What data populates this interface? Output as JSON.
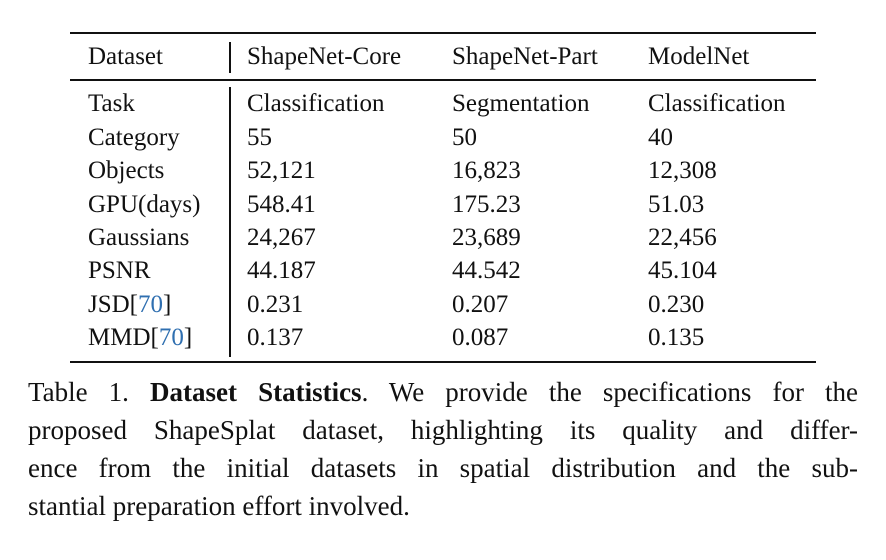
{
  "table": {
    "header": [
      "Dataset",
      "ShapeNet-Core",
      "ShapeNet-Part",
      "ModelNet"
    ],
    "rows": [
      {
        "label": [
          "Task"
        ],
        "cells": [
          "Classification",
          "Segmentation",
          "Classification"
        ]
      },
      {
        "label": [
          "Category"
        ],
        "cells": [
          "55",
          "50",
          "40"
        ]
      },
      {
        "label": [
          "Objects"
        ],
        "cells": [
          "52,121",
          "16,823",
          "12,308"
        ]
      },
      {
        "label": [
          "GPU(days)"
        ],
        "cells": [
          "548.41",
          "175.23",
          "51.03"
        ]
      },
      {
        "label": [
          "Gaussians"
        ],
        "cells": [
          "24,267",
          "23,689",
          "22,456"
        ]
      },
      {
        "label": [
          "PSNR"
        ],
        "cells": [
          "44.187",
          "44.542",
          "45.104"
        ]
      },
      {
        "label": [
          "JSD[",
          "70",
          "]"
        ],
        "cells": [
          "0.231",
          "0.207",
          "0.230"
        ]
      },
      {
        "label": [
          "MMD[",
          "70",
          "]"
        ],
        "cells": [
          "0.137",
          "0.087",
          "0.135"
        ]
      }
    ]
  },
  "caption": {
    "prefix": "Table 1.",
    "title": "Dataset Statistics",
    "lines": [
      ". We provide the specifications for the",
      "proposed ShapeSplat dataset, highlighting its quality and differ-",
      "ence from the initial datasets in spatial distribution and the sub-",
      "stantial preparation effort involved."
    ]
  }
}
